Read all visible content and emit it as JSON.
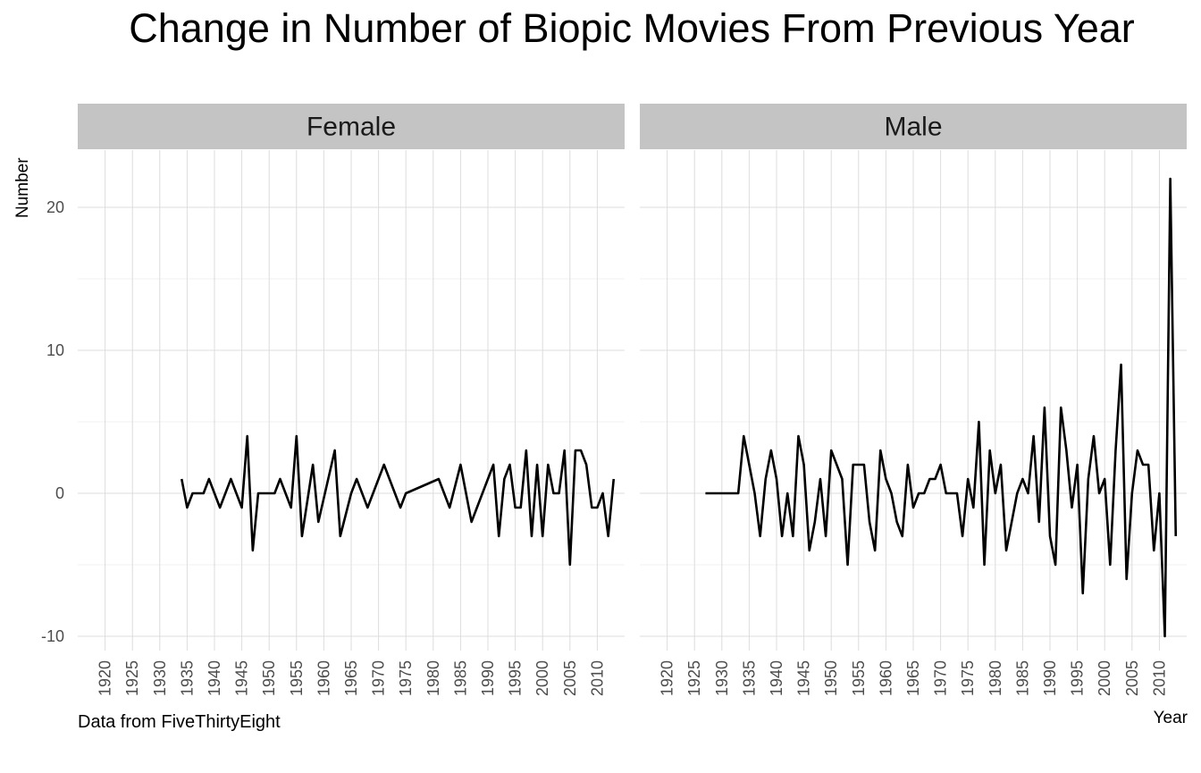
{
  "chart_data": {
    "type": "line",
    "title": "Change in Number of Biopic Movies From Previous Year",
    "xlabel": "Year",
    "ylabel": "Number",
    "caption": "Data from FiveThirtyEight",
    "ylim": [
      -11,
      24
    ],
    "xlim": [
      1915,
      2015
    ],
    "yticks": [
      -10,
      0,
      10,
      20
    ],
    "xticks": [
      1920,
      1925,
      1930,
      1935,
      1940,
      1945,
      1950,
      1955,
      1960,
      1965,
      1970,
      1975,
      1980,
      1985,
      1990,
      1995,
      2000,
      2005,
      2010
    ],
    "grid": true,
    "facets": [
      {
        "name": "Female",
        "x": [
          1934,
          1935,
          1936,
          1937,
          1938,
          1939,
          1941,
          1943,
          1945,
          1946,
          1947,
          1948,
          1949,
          1950,
          1951,
          1952,
          1954,
          1955,
          1956,
          1958,
          1959,
          1962,
          1963,
          1965,
          1966,
          1968,
          1969,
          1971,
          1972,
          1974,
          1975,
          1981,
          1983,
          1985,
          1986,
          1987,
          1988,
          1990,
          1991,
          1992,
          1993,
          1994,
          1995,
          1996,
          1997,
          1998,
          1999,
          2000,
          2001,
          2002,
          2003,
          2004,
          2005,
          2006,
          2007,
          2008,
          2009,
          2010,
          2011,
          2012,
          2013
        ],
        "y": [
          1,
          -1,
          0,
          0,
          0,
          1,
          -1,
          1,
          -1,
          4,
          -4,
          0,
          0,
          0,
          0,
          1,
          -1,
          4,
          -3,
          2,
          -2,
          3,
          -3,
          0,
          1,
          -1,
          0,
          2,
          1,
          -1,
          0,
          1,
          -1,
          2,
          0,
          -2,
          -1,
          1,
          2,
          -3,
          1,
          2,
          -1,
          -1,
          3,
          -3,
          2,
          -3,
          2,
          0,
          0,
          3,
          -5,
          3,
          3,
          2,
          -1,
          -1,
          0,
          -3,
          1
        ]
      },
      {
        "name": "Male",
        "x": [
          1927,
          1928,
          1929,
          1930,
          1931,
          1932,
          1933,
          1934,
          1935,
          1936,
          1937,
          1938,
          1939,
          1940,
          1941,
          1942,
          1943,
          1944,
          1945,
          1946,
          1947,
          1948,
          1949,
          1950,
          1951,
          1952,
          1953,
          1954,
          1955,
          1956,
          1957,
          1958,
          1959,
          1960,
          1961,
          1962,
          1963,
          1964,
          1965,
          1966,
          1967,
          1968,
          1969,
          1970,
          1971,
          1972,
          1973,
          1974,
          1975,
          1976,
          1977,
          1978,
          1979,
          1980,
          1981,
          1982,
          1983,
          1984,
          1985,
          1986,
          1987,
          1988,
          1989,
          1990,
          1991,
          1992,
          1993,
          1994,
          1995,
          1996,
          1997,
          1998,
          1999,
          2000,
          2001,
          2002,
          2003,
          2004,
          2005,
          2006,
          2007,
          2008,
          2009,
          2010,
          2011,
          2012,
          2013
        ],
        "y": [
          0,
          0,
          0,
          0,
          0,
          0,
          0,
          4,
          2,
          0,
          -3,
          1,
          3,
          1,
          -3,
          0,
          -3,
          4,
          2,
          -4,
          -2,
          1,
          -3,
          3,
          2,
          1,
          -5,
          2,
          2,
          2,
          -2,
          -4,
          3,
          1,
          0,
          -2,
          -3,
          2,
          -1,
          0,
          0,
          1,
          1,
          2,
          0,
          0,
          0,
          -3,
          1,
          -1,
          5,
          -5,
          3,
          0,
          2,
          -4,
          -2,
          0,
          1,
          0,
          4,
          -2,
          6,
          -3,
          -5,
          6,
          3,
          -1,
          2,
          -7,
          1,
          4,
          0,
          1,
          -5,
          3,
          9,
          -6,
          0,
          3,
          2,
          2,
          -4,
          0,
          -10,
          22,
          -3
        ]
      }
    ]
  }
}
